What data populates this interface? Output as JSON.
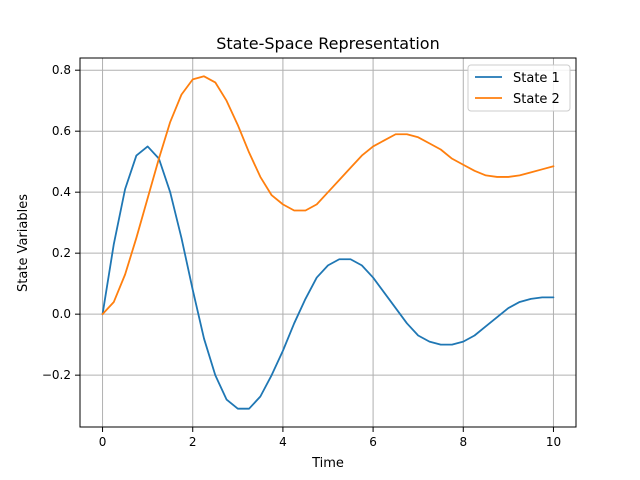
{
  "chart_data": {
    "type": "line",
    "title": "State-Space Representation",
    "xlabel": "Time",
    "ylabel": "State Variables",
    "xlim": [
      -0.5,
      10.5
    ],
    "ylim": [
      -0.37,
      0.84
    ],
    "xticks": [
      0,
      2,
      4,
      6,
      8,
      10
    ],
    "yticks": [
      -0.2,
      0.0,
      0.2,
      0.4,
      0.6,
      0.8
    ],
    "xtick_labels": [
      "0",
      "2",
      "4",
      "6",
      "8",
      "10"
    ],
    "ytick_labels": [
      "−0.2",
      "0.0",
      "0.2",
      "0.4",
      "0.6",
      "0.8"
    ],
    "grid": true,
    "legend_position": "top-right",
    "series": [
      {
        "name": "State 1",
        "color": "#1f77b4",
        "x": [
          0,
          0.25,
          0.5,
          0.75,
          1.0,
          1.25,
          1.5,
          1.75,
          2.0,
          2.25,
          2.5,
          2.75,
          3.0,
          3.25,
          3.5,
          3.75,
          4.0,
          4.25,
          4.5,
          4.75,
          5.0,
          5.25,
          5.5,
          5.75,
          6.0,
          6.25,
          6.5,
          6.75,
          7.0,
          7.25,
          7.5,
          7.75,
          8.0,
          8.25,
          8.5,
          8.75,
          9.0,
          9.25,
          9.5,
          9.75,
          10.0
        ],
        "y": [
          0.0,
          0.23,
          0.41,
          0.52,
          0.55,
          0.51,
          0.4,
          0.25,
          0.08,
          -0.08,
          -0.2,
          -0.28,
          -0.31,
          -0.31,
          -0.27,
          -0.2,
          -0.12,
          -0.03,
          0.05,
          0.12,
          0.16,
          0.18,
          0.18,
          0.16,
          0.12,
          0.07,
          0.02,
          -0.03,
          -0.07,
          -0.09,
          -0.1,
          -0.1,
          -0.09,
          -0.07,
          -0.04,
          -0.01,
          0.02,
          0.04,
          0.05,
          0.055,
          0.055
        ]
      },
      {
        "name": "State 2",
        "color": "#ff7f0e",
        "x": [
          0,
          0.25,
          0.5,
          0.75,
          1.0,
          1.25,
          1.5,
          1.75,
          2.0,
          2.25,
          2.5,
          2.75,
          3.0,
          3.25,
          3.5,
          3.75,
          4.0,
          4.25,
          4.5,
          4.75,
          5.0,
          5.25,
          5.5,
          5.75,
          6.0,
          6.25,
          6.5,
          6.75,
          7.0,
          7.25,
          7.5,
          7.75,
          8.0,
          8.25,
          8.5,
          8.75,
          9.0,
          9.25,
          9.5,
          9.75,
          10.0
        ],
        "y": [
          0.0,
          0.04,
          0.13,
          0.25,
          0.38,
          0.51,
          0.63,
          0.72,
          0.77,
          0.78,
          0.76,
          0.7,
          0.62,
          0.53,
          0.45,
          0.39,
          0.36,
          0.34,
          0.34,
          0.36,
          0.4,
          0.44,
          0.48,
          0.52,
          0.55,
          0.57,
          0.59,
          0.59,
          0.58,
          0.56,
          0.54,
          0.51,
          0.49,
          0.47,
          0.455,
          0.45,
          0.45,
          0.455,
          0.465,
          0.475,
          0.485
        ]
      }
    ]
  }
}
